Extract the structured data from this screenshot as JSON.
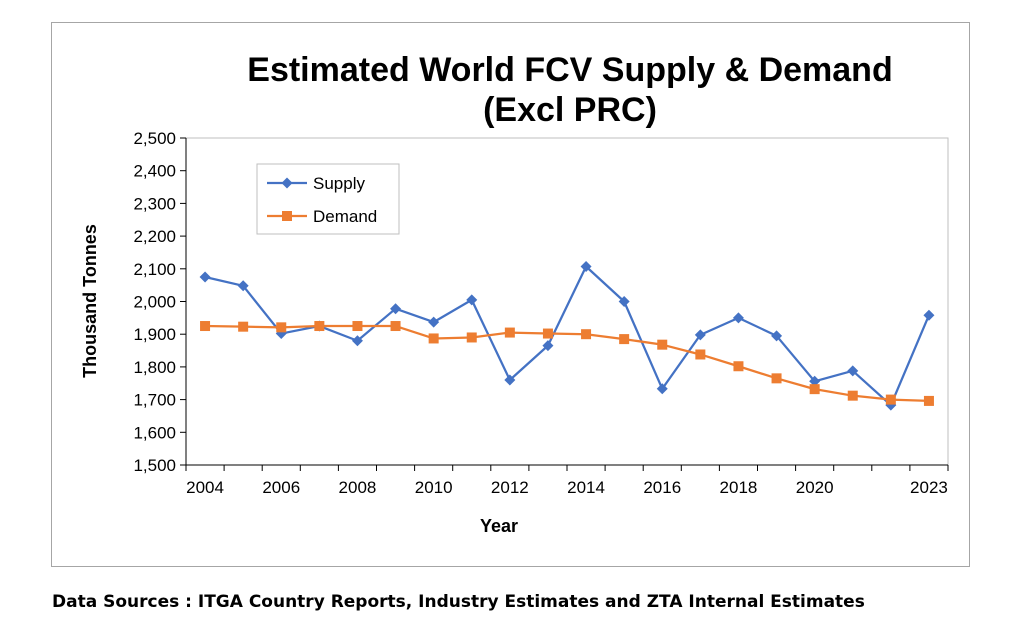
{
  "chart_data": {
    "type": "line",
    "title": "Estimated World FCV Supply & Demand",
    "subtitle": "(Excl PRC)",
    "xlabel": "Year",
    "ylabel": "Thousand Tonnes",
    "ylim": [
      1500,
      2500
    ],
    "y_ticks": [
      "1,500",
      "1,600",
      "1,700",
      "1,800",
      "1,900",
      "2,000",
      "2,100",
      "2,200",
      "2,300",
      "2,400",
      "2,500"
    ],
    "x_tick_labels": [
      "2004",
      "2006",
      "2008",
      "2010",
      "2012",
      "2014",
      "2016",
      "2018",
      "2020",
      "2023"
    ],
    "grid": false,
    "legend_position": "top-left",
    "categories": [
      "2004",
      "2005",
      "2006",
      "2007",
      "2008",
      "2009",
      "2010",
      "2011",
      "2012",
      "2013",
      "2014",
      "2015",
      "2016",
      "2017",
      "2018",
      "2019",
      "2020",
      "2021",
      "2022",
      "2023"
    ],
    "series": [
      {
        "name": "Supply",
        "color": "#4472c4",
        "marker": "diamond",
        "values": [
          2075,
          2048,
          1902,
          1925,
          1880,
          1978,
          1937,
          2005,
          1760,
          1865,
          2107,
          2000,
          1733,
          1898,
          1950,
          1895,
          1756,
          1788,
          1683,
          1958
        ]
      },
      {
        "name": "Demand",
        "color": "#ed7d31",
        "marker": "square",
        "values": [
          1925,
          1923,
          1921,
          1925,
          1925,
          1925,
          1887,
          1890,
          1905,
          1902,
          1900,
          1885,
          1868,
          1838,
          1802,
          1765,
          1732,
          1712,
          1700,
          1696
        ]
      }
    ]
  },
  "footer": {
    "source_note": "Data Sources : ITGA Country Reports, Industry Estimates and ZTA Internal Estimates"
  }
}
